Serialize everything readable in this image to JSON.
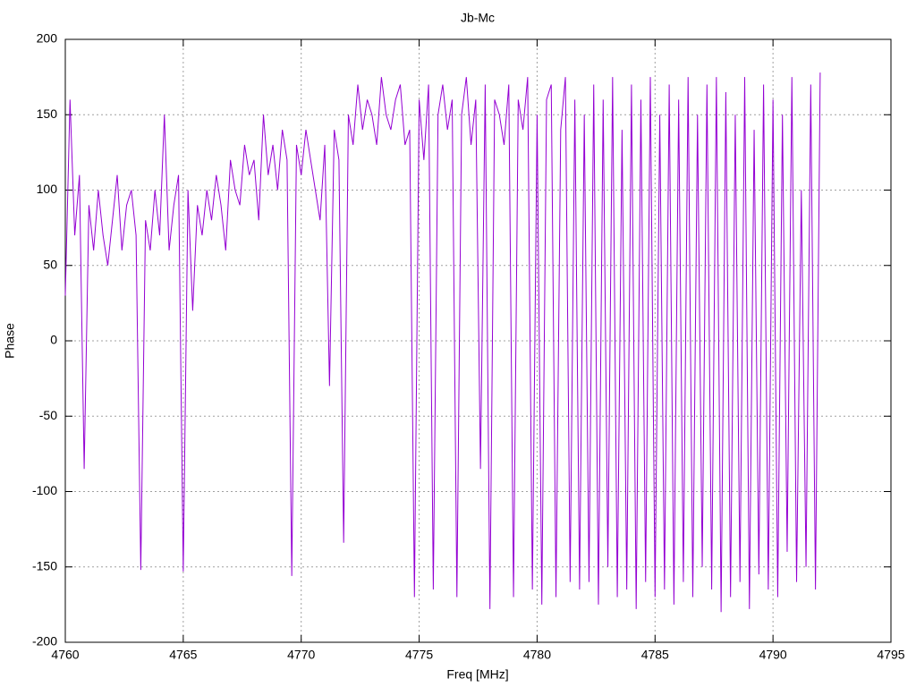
{
  "chart_data": {
    "type": "line",
    "title": "Jb-Mc",
    "xlabel": "Freq [MHz]",
    "ylabel": "Phase",
    "xlim": [
      4760,
      4795
    ],
    "xticks": [
      4760,
      4765,
      4770,
      4775,
      4780,
      4785,
      4790,
      4795
    ],
    "ylim": [
      -200,
      200
    ],
    "yticks": [
      -200,
      -150,
      -100,
      -50,
      0,
      50,
      100,
      150,
      200
    ],
    "grid": true,
    "series": [
      {
        "color": "#9400d3",
        "x": [
          4760,
          4760.2,
          4760.4,
          4760.6,
          4760.8,
          4761,
          4761.2,
          4761.4,
          4761.6,
          4761.8,
          4762,
          4762.2,
          4762.4,
          4762.6,
          4762.8,
          4763,
          4763.2,
          4763.4,
          4763.6,
          4763.8,
          4764,
          4764.2,
          4764.4,
          4764.6,
          4764.8,
          4765,
          4765.2,
          4765.4,
          4765.6,
          4765.8,
          4766,
          4766.2,
          4766.4,
          4766.6,
          4766.8,
          4767,
          4767.2,
          4767.4,
          4767.6,
          4767.8,
          4768,
          4768.2,
          4768.4,
          4768.6,
          4768.8,
          4769,
          4769.2,
          4769.4,
          4769.6,
          4769.8,
          4770,
          4770.2,
          4770.4,
          4770.6,
          4770.8,
          4771,
          4771.2,
          4771.4,
          4771.6,
          4771.8,
          4772,
          4772.2,
          4772.4,
          4772.6,
          4772.8,
          4773,
          4773.2,
          4773.4,
          4773.6,
          4773.8,
          4774,
          4774.2,
          4774.4,
          4774.6,
          4774.8,
          4775,
          4775.2,
          4775.4,
          4775.6,
          4775.8,
          4776,
          4776.2,
          4776.4,
          4776.6,
          4776.8,
          4777,
          4777.2,
          4777.4,
          4777.6,
          4777.8,
          4778,
          4778.2,
          4778.4,
          4778.6,
          4778.8,
          4779,
          4779.2,
          4779.4,
          4779.6,
          4779.8,
          4780,
          4780.2,
          4780.4,
          4780.6,
          4780.8,
          4781,
          4781.2,
          4781.4,
          4781.6,
          4781.8,
          4782,
          4782.2,
          4782.4,
          4782.6,
          4782.8,
          4783,
          4783.2,
          4783.4,
          4783.6,
          4783.8,
          4784,
          4784.2,
          4784.4,
          4784.6,
          4784.8,
          4785,
          4785.2,
          4785.4,
          4785.6,
          4785.8,
          4786,
          4786.2,
          4786.4,
          4786.6,
          4786.8,
          4787,
          4787.2,
          4787.4,
          4787.6,
          4787.8,
          4788,
          4788.2,
          4788.4,
          4788.6,
          4788.8,
          4789,
          4789.2,
          4789.4,
          4789.6,
          4789.8,
          4790,
          4790.2,
          4790.4,
          4790.6,
          4790.8,
          4791,
          4791.2,
          4791.4,
          4791.6,
          4791.8,
          4792
        ],
        "values": [
          30,
          160,
          70,
          110,
          -85,
          90,
          60,
          100,
          70,
          50,
          80,
          110,
          60,
          90,
          100,
          70,
          -152,
          80,
          60,
          100,
          70,
          150,
          60,
          90,
          110,
          -153,
          100,
          20,
          90,
          70,
          100,
          80,
          110,
          90,
          60,
          120,
          100,
          90,
          130,
          110,
          120,
          80,
          150,
          110,
          130,
          100,
          140,
          120,
          -156,
          130,
          110,
          140,
          120,
          100,
          80,
          130,
          -30,
          140,
          120,
          -134,
          150,
          130,
          170,
          140,
          160,
          150,
          130,
          175,
          150,
          140,
          160,
          170,
          130,
          140,
          -170,
          160,
          120,
          170,
          -165,
          150,
          170,
          140,
          160,
          -170,
          150,
          175,
          130,
          160,
          -85,
          170,
          -178,
          160,
          150,
          130,
          170,
          -170,
          160,
          140,
          175,
          -165,
          150,
          -175,
          160,
          170,
          -170,
          140,
          175,
          -160,
          160,
          -165,
          150,
          -160,
          170,
          -175,
          160,
          -150,
          175,
          -170,
          140,
          -165,
          170,
          -178,
          160,
          -160,
          175,
          -170,
          150,
          -165,
          170,
          -175,
          160,
          -160,
          175,
          -170,
          150,
          -150,
          170,
          -165,
          175,
          -180,
          165,
          -170,
          150,
          -160,
          175,
          -178,
          140,
          -155,
          170,
          -165,
          160,
          -170,
          150,
          -140,
          175,
          -160,
          100,
          -150,
          170,
          -165,
          178
        ]
      }
    ]
  }
}
